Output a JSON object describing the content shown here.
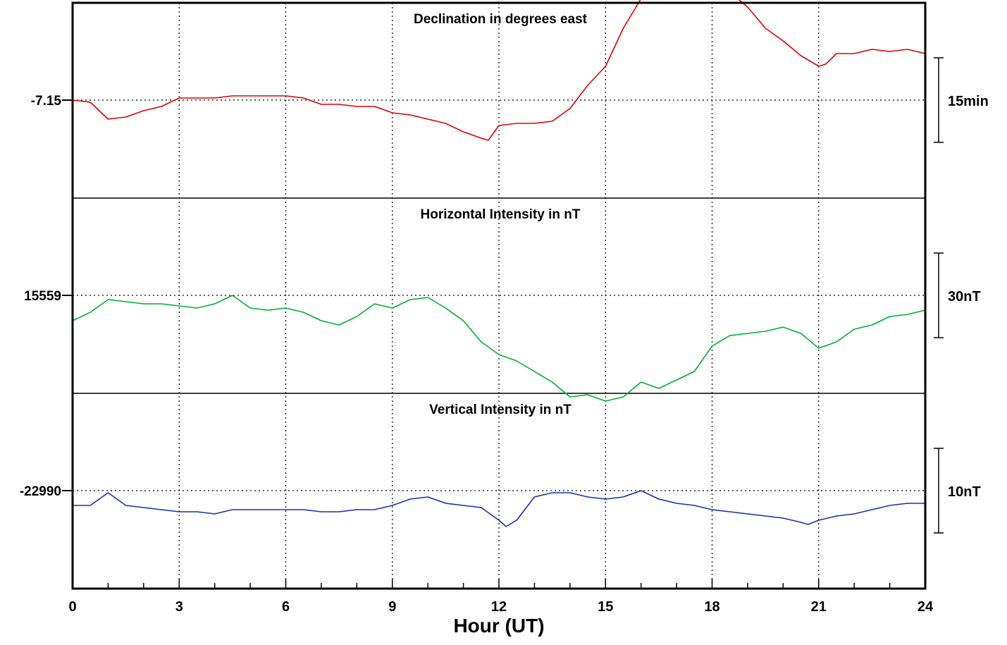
{
  "chart_data": {
    "type": "line",
    "xlabel": "Hour (UT)",
    "xlim": [
      0,
      24
    ],
    "x_ticks": [
      "0",
      "3",
      "6",
      "9",
      "12",
      "15",
      "18",
      "21",
      "24"
    ],
    "x_minor_step_hours": 1,
    "grid": true,
    "panels": [
      {
        "title": "Declination in degrees east",
        "baseline_label": "-7.15",
        "scale_label": "15min",
        "color": "#e00000",
        "x": [
          0,
          0.5,
          1,
          1.5,
          2,
          2.5,
          3,
          3.5,
          4,
          4.5,
          5,
          5.5,
          6,
          6.5,
          7,
          7.5,
          8,
          8.5,
          9,
          9.5,
          10,
          10.5,
          11,
          11.5,
          11.7,
          12,
          12.5,
          13,
          13.5,
          14,
          14.5,
          15,
          15.5,
          16,
          16.5,
          17,
          17.5,
          18,
          18.5,
          19,
          19.5,
          20,
          20.5,
          21,
          21.2,
          21.5,
          22,
          22.5,
          23,
          23.5,
          24
        ],
        "values": [
          0,
          -0.5,
          -4.5,
          -4,
          -2.5,
          -1.5,
          0.5,
          0.5,
          0.5,
          1,
          1,
          1,
          1,
          0.5,
          -1,
          -1,
          -1.5,
          -1.5,
          -3,
          -3.5,
          -4.5,
          -5.5,
          -7.5,
          -9,
          -9.5,
          -6,
          -5.5,
          -5.5,
          -5,
          -2,
          3.5,
          8,
          17,
          24,
          26.5,
          28.5,
          27.5,
          27,
          25.5,
          22,
          17,
          14,
          10.5,
          8,
          8.5,
          11,
          11,
          12,
          11.5,
          12,
          11
        ]
      },
      {
        "title": "Horizontal Intensity in nT",
        "baseline_label": "15559",
        "scale_label": "30nT",
        "color": "#00b030",
        "x": [
          0,
          0.5,
          1,
          1.5,
          2,
          2.5,
          3,
          3.5,
          4,
          4.5,
          5,
          5.5,
          6,
          6.5,
          7,
          7.5,
          8,
          8.5,
          9,
          9.5,
          10,
          10.5,
          11,
          11.5,
          12,
          12.5,
          13,
          13.5,
          14,
          14.5,
          15,
          15.5,
          16,
          16.5,
          17,
          17.5,
          18,
          18.5,
          19,
          19.5,
          20,
          20.5,
          21,
          21.5,
          22,
          22.5,
          23,
          23.5,
          24
        ],
        "values": [
          -6,
          -4,
          -1,
          -1.5,
          -2,
          -2,
          -2.5,
          -3,
          -2,
          0,
          -3,
          -3.5,
          -3,
          -4,
          -6,
          -7,
          -5,
          -2,
          -3,
          -1,
          -0.5,
          -3,
          -6,
          -11,
          -14,
          -15.5,
          -18,
          -20.5,
          -24,
          -23.5,
          -25,
          -24,
          -20.5,
          -22,
          -20,
          -18,
          -12,
          -9.5,
          -9,
          -8.5,
          -7.5,
          -9,
          -12.5,
          -11,
          -8,
          -7,
          -5,
          -4.5,
          -3.5
        ]
      },
      {
        "title": "Vertical Intensity in nT",
        "baseline_label": "-22990",
        "scale_label": "10nT",
        "color": "#1a2eb0",
        "x": [
          0,
          0.5,
          1,
          1.5,
          2,
          2.5,
          3,
          3.5,
          4,
          4.5,
          5,
          5.5,
          6,
          6.5,
          7,
          7.5,
          8,
          8.5,
          9,
          9.5,
          10,
          10.5,
          11,
          11.5,
          12,
          12.2,
          12.5,
          13,
          13.5,
          14,
          14.5,
          15,
          15.5,
          16,
          16.5,
          17,
          17.5,
          18,
          18.5,
          19,
          19.5,
          20,
          20.5,
          20.7,
          21,
          21.5,
          22,
          22.5,
          23,
          23.5,
          24
        ],
        "values": [
          -3.5,
          -3.5,
          -0.5,
          -3.5,
          -4,
          -4.5,
          -5,
          -5,
          -5.5,
          -4.5,
          -4.5,
          -4.5,
          -4.5,
          -4.5,
          -5,
          -5,
          -4.5,
          -4.5,
          -3.5,
          -2,
          -1.5,
          -3,
          -3.5,
          -4,
          -7,
          -8.5,
          -7,
          -1.5,
          -0.5,
          -0.5,
          -1.5,
          -2,
          -1.5,
          0,
          -2,
          -3,
          -3.5,
          -4.5,
          -5,
          -5.5,
          -6,
          -6.5,
          -7.5,
          -8,
          -7,
          -6,
          -5.5,
          -4.5,
          -3.5,
          -3,
          -3
        ]
      }
    ]
  }
}
